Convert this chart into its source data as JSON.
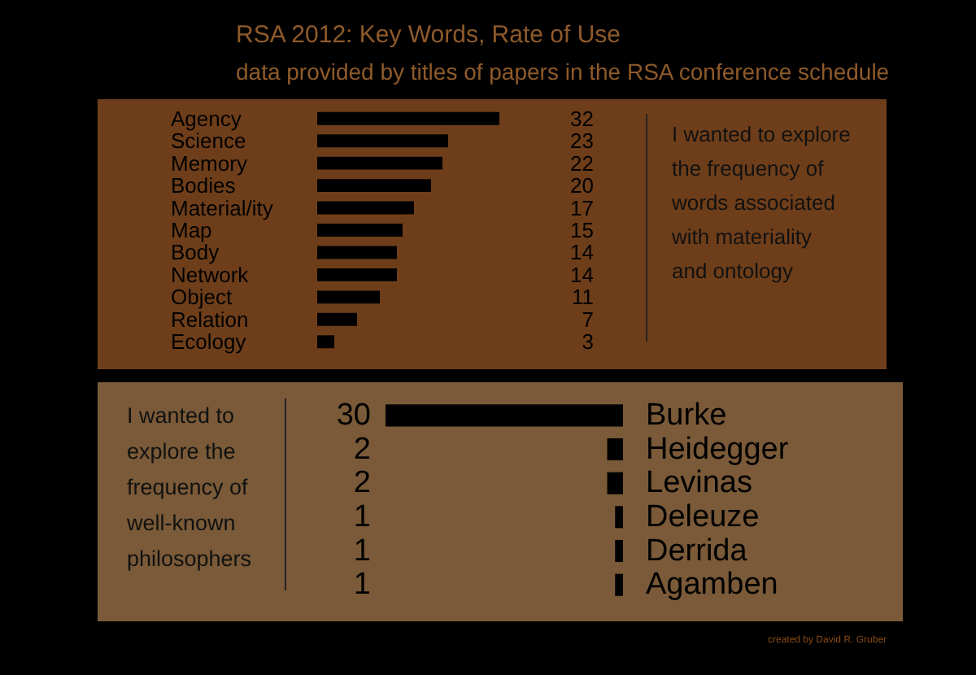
{
  "chart_data": [
    {
      "type": "bar",
      "orientation": "horizontal",
      "title": "RSA 2012: Key Words, Rate of Use",
      "subtitle": "data provided by titles of papers in the RSA conference schedule",
      "categories": [
        "Agency",
        "Science",
        "Memory",
        "Bodies",
        "Material/ity",
        "Map",
        "Body",
        "Network",
        "Object",
        "Relation",
        "Ecology"
      ],
      "values": [
        32,
        23,
        22,
        20,
        17,
        15,
        14,
        14,
        11,
        7,
        3
      ],
      "color": "#000000",
      "data_labels": true,
      "annotations": [
        "I wanted to explore the frequency of words associated with materiality and ontology"
      ]
    },
    {
      "type": "bar",
      "orientation": "horizontal",
      "categories": [
        "Burke",
        "Heidegger",
        "Levinas",
        "Deleuze",
        "Derrida",
        "Agamben"
      ],
      "values": [
        30,
        2,
        2,
        1,
        1,
        1
      ],
      "color": "#000000",
      "data_labels": true,
      "annotations": [
        "I wanted to explore the frequency of well-known philosophers",
        "created by David R. Gruber"
      ]
    }
  ]
}
